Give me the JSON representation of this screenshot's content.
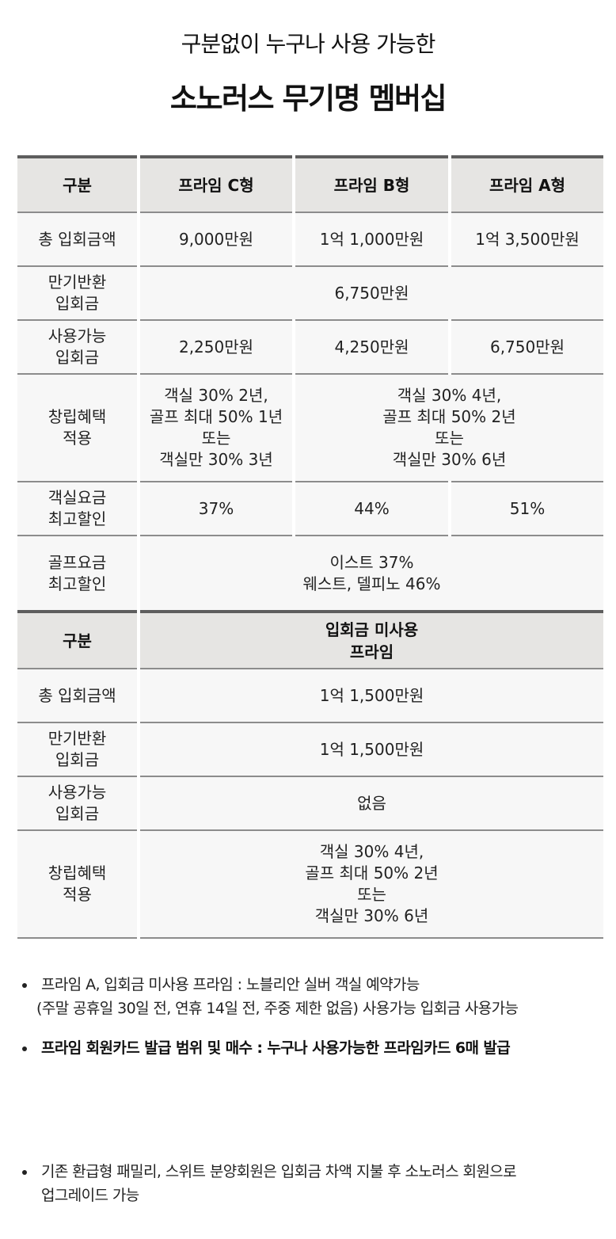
{
  "header": {
    "subtitle": "구분없이 누구나 사용 가능한",
    "title": "소노러스 무기명 멤버십"
  },
  "table1": {
    "head": {
      "label": "구분",
      "c": "프라임 C형",
      "b": "프라임 B형",
      "a": "프라임 A형"
    },
    "rows": {
      "total": {
        "label": "총 입회금액",
        "c": "9,000만원",
        "b": "1억 1,000만원",
        "a": "1억 3,500만원"
      },
      "refund": {
        "label_lines": [
          "만기반환",
          "입회금"
        ],
        "value": "6,750만원"
      },
      "usable": {
        "label_lines": [
          "사용가능",
          "입회금"
        ],
        "c": "2,250만원",
        "b": "4,250만원",
        "a": "6,750만원"
      },
      "founding": {
        "label_lines": [
          "창립혜택",
          "적용"
        ],
        "c_lines": [
          "객실 30% 2년,",
          "골프 최대 50% 1년",
          "또는",
          "객실만 30% 3년"
        ],
        "ab_lines": [
          "객실 30% 4년,",
          "골프 최대 50% 2년",
          "또는",
          "객실만 30% 6년"
        ]
      },
      "room_discount": {
        "label_lines": [
          "객실요금",
          "최고할인"
        ],
        "c": "37%",
        "b": "44%",
        "a": "51%"
      },
      "golf_discount": {
        "label_lines": [
          "골프요금",
          "최고할인"
        ],
        "value_lines": [
          "이스트 37%",
          "웨스트, 델피노 46%"
        ]
      }
    }
  },
  "table2": {
    "head": {
      "label": "구분",
      "value_lines": [
        "입회금 미사용",
        "프라임"
      ]
    },
    "rows": {
      "total": {
        "label": "총 입회금액",
        "value": "1억 1,500만원"
      },
      "refund": {
        "label_lines": [
          "만기반환",
          "입회금"
        ],
        "value": "1억 1,500만원"
      },
      "usable": {
        "label_lines": [
          "사용가능",
          "입회금"
        ],
        "value": "없음"
      },
      "founding": {
        "label_lines": [
          "창립혜택",
          "적용"
        ],
        "value_lines": [
          "객실 30% 4년,",
          "골프 최대 50% 2년",
          "또는",
          "객실만 30% 6년"
        ]
      }
    }
  },
  "notes": {
    "note1_lines": [
      "프라임 A, 입회금 미사용 프라임 : 노블리안 실버 객실 예약가능",
      "(주말 공휴일 30일 전, 연휴 14일 전, 주중 제한 없음) 사용가능 입회금 사용가능"
    ],
    "note2": "프라임 회원카드 발급 범위 및 매수 : 누구나 사용가능한 프라임카드 6매 발급",
    "note3_lines": [
      "기존 환급형 패밀리, 스위트 분양회원은 입회금 차액 지불 후 소노러스 회원으로",
      "업그레이드 가능"
    ]
  }
}
